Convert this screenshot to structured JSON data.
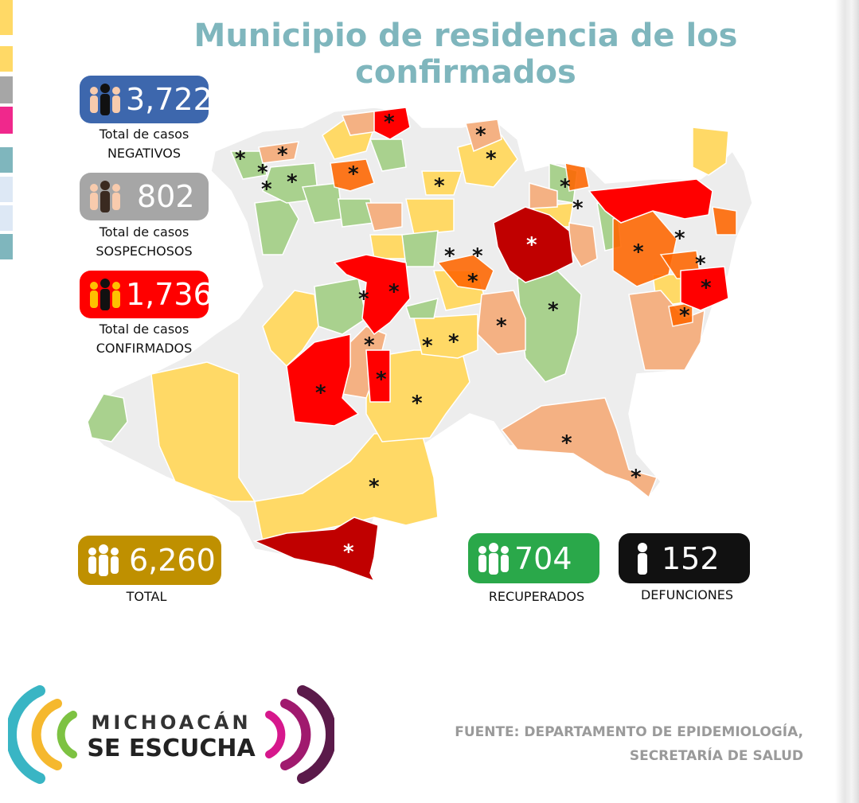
{
  "title": "Municipio de residencia de los confirmados",
  "colors": {
    "title": "#7fb6bd",
    "negativos": "#3d67ad",
    "sospechosos": "#a6a6a6",
    "confirmados": "#ff0000",
    "total": "#bf9000",
    "recuperados": "#2aa84a",
    "defunciones": "#111111"
  },
  "stats": {
    "negativos": {
      "value": "3,722",
      "label_line1": "Total de casos",
      "label_line2": "NEGATIVOS",
      "icon": "people-icon"
    },
    "sospechosos": {
      "value": "802",
      "label_line1": "Total de casos",
      "label_line2": "SOSPECHOSOS",
      "icon": "people-icon"
    },
    "confirmados": {
      "value": "1,736",
      "label_line1": "Total de casos",
      "label_line2": "CONFIRMADOS",
      "icon": "people-icon"
    },
    "total": {
      "value": "6,260",
      "label": "TOTAL",
      "icon": "people-icon"
    },
    "recuperados": {
      "value": "704",
      "label": "RECUPERADOS",
      "icon": "people-icon"
    },
    "defunciones": {
      "value": "152",
      "label": "DEFUNCIONES",
      "icon": "person-icon"
    }
  },
  "map": {
    "legend_colors": [
      "#ffd966",
      "#f4b183",
      "#ff6600",
      "#ff0000",
      "#c00000",
      "#a9d18e",
      "#ededed"
    ]
  },
  "source": {
    "line1": "FUENTE: DEPARTAMENTO DE EPIDEMIOLOGÍA,",
    "line2": "SECRETARÍA DE SALUD"
  },
  "logo": {
    "line1": "MICHOACÁN",
    "line2": "SE ESCUCHA"
  }
}
